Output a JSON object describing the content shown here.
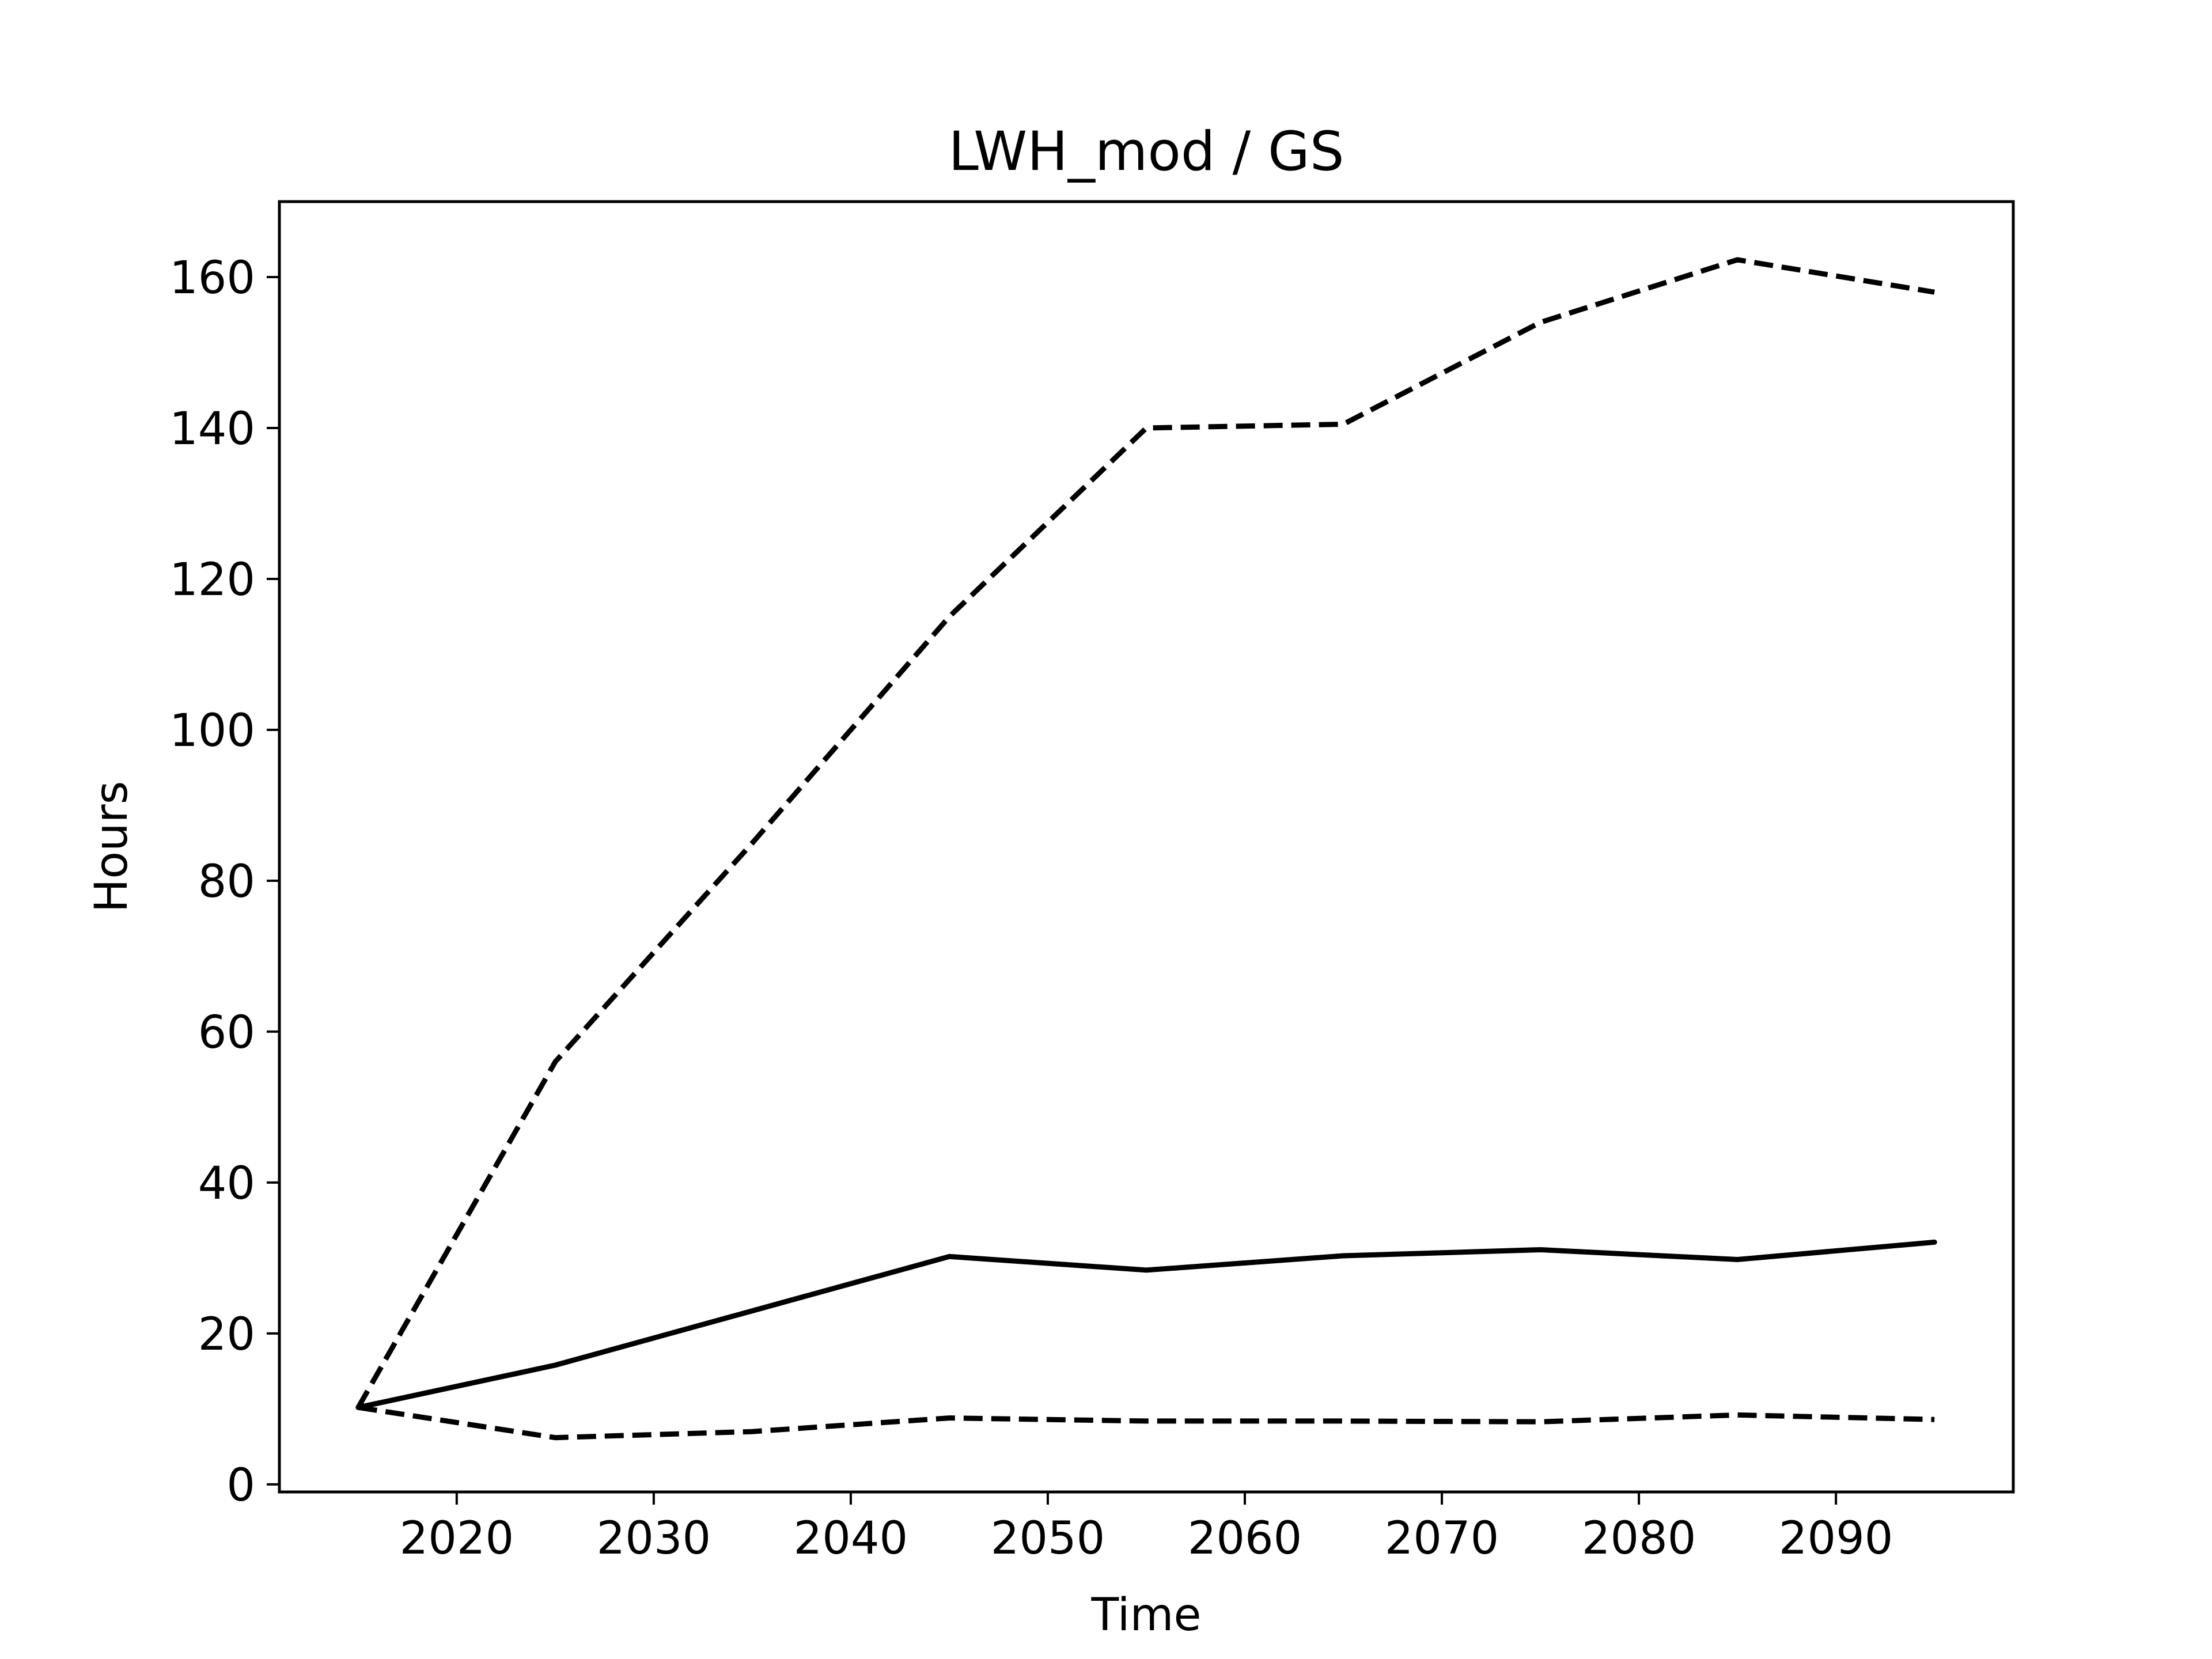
{
  "chart_data": {
    "type": "line",
    "title": "LWH_mod / GS",
    "xlabel": "Time",
    "ylabel": "Hours",
    "xlim": [
      2011,
      2099
    ],
    "ylim": [
      -1,
      170
    ],
    "xticks": [
      2020,
      2030,
      2040,
      2050,
      2060,
      2070,
      2080,
      2090
    ],
    "yticks": [
      0,
      20,
      40,
      60,
      80,
      100,
      120,
      140,
      160
    ],
    "grid": false,
    "x": [
      2015,
      2025,
      2035,
      2045,
      2055,
      2065,
      2075,
      2085,
      2095
    ],
    "series": [
      {
        "style": "solid",
        "color": "#000000",
        "values": [
          10.2,
          15.8,
          23.0,
          30.2,
          28.4,
          30.3,
          31.1,
          29.8,
          32.1
        ]
      },
      {
        "style": "dashed",
        "color": "#000000",
        "values": [
          10.2,
          56.0,
          85.0,
          115.0,
          140.0,
          140.5,
          154.0,
          162.3,
          158.0
        ]
      },
      {
        "style": "dashed",
        "color": "#000000",
        "values": [
          10.2,
          6.2,
          7.0,
          8.8,
          8.4,
          8.4,
          8.3,
          9.2,
          8.6
        ]
      }
    ]
  }
}
